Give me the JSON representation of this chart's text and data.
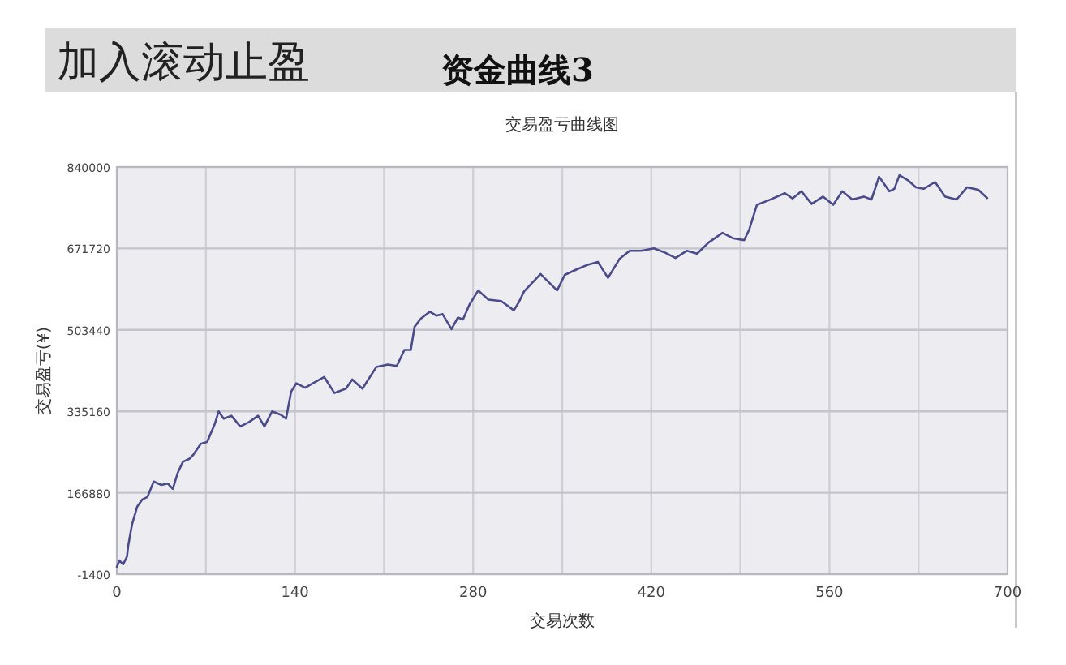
{
  "chart_data": {
    "type": "line",
    "title": "交易盈亏曲线图",
    "xlabel": "交易次数",
    "ylabel": "交易盈亏(¥)",
    "annotations": [
      "加入滚动止盈",
      "资金曲线3"
    ],
    "xlim": [
      0,
      700
    ],
    "ylim": [
      -1400,
      840000
    ],
    "xticks": [
      0,
      {
        "value": 70,
        "label": null
      },
      140,
      {
        "value": 210,
        "label": null
      },
      280,
      {
        "value": 350,
        "label": null
      },
      420,
      {
        "value": 490,
        "label": null
      },
      560,
      {
        "value": 630,
        "label": null
      },
      700
    ],
    "yticks": [
      -1400,
      166880,
      335160,
      503440,
      671720,
      840000
    ],
    "grid": true,
    "x": [
      0,
      2,
      5,
      8,
      9,
      12,
      16,
      20,
      24,
      29,
      35,
      40,
      44,
      48,
      52,
      57,
      60,
      66,
      71,
      77,
      80,
      84,
      90,
      97,
      104,
      111,
      116,
      122,
      129,
      133,
      137,
      141,
      148,
      154,
      163,
      171,
      180,
      185,
      193,
      204,
      213,
      220,
      226,
      231,
      234,
      239,
      246,
      251,
      256,
      263,
      268,
      272,
      277,
      284,
      292,
      302,
      312,
      316,
      320,
      333,
      339,
      346,
      352,
      361,
      369,
      378,
      386,
      395,
      403,
      412,
      422,
      431,
      439,
      448,
      456,
      465,
      476,
      484,
      493,
      497,
      503,
      512,
      525,
      531,
      538,
      546,
      555,
      563,
      570,
      578,
      587,
      593,
      599,
      607,
      611,
      615,
      622,
      628,
      634,
      643,
      651,
      660,
      668,
      677,
      684
    ],
    "series": [
      {
        "color": "#4b4b8c",
        "values": [
          13000,
          27000,
          19000,
          35000,
          58000,
          102000,
          138000,
          153000,
          158000,
          190000,
          183000,
          186000,
          175000,
          209000,
          231000,
          237000,
          245000,
          268000,
          272000,
          309000,
          335000,
          320000,
          326000,
          304000,
          313000,
          326000,
          304000,
          335000,
          328000,
          320000,
          376000,
          393000,
          384000,
          393000,
          406000,
          373000,
          382000,
          401000,
          382000,
          427000,
          432000,
          429000,
          462000,
          462000,
          510000,
          527000,
          541000,
          533000,
          536000,
          505000,
          529000,
          525000,
          555000,
          585000,
          566000,
          563000,
          544000,
          561000,
          583000,
          619000,
          603000,
          585000,
          617000,
          628000,
          637000,
          644000,
          611000,
          650000,
          667000,
          667000,
          672000,
          663000,
          652000,
          667000,
          661000,
          684000,
          704000,
          693000,
          689000,
          711000,
          762000,
          771000,
          786000,
          775000,
          790000,
          764000,
          779000,
          762000,
          790000,
          773000,
          779000,
          773000,
          820000,
          790000,
          795000,
          823000,
          812000,
          798000,
          795000,
          809000,
          779000,
          773000,
          798000,
          793000,
          776000
        ]
      }
    ]
  }
}
